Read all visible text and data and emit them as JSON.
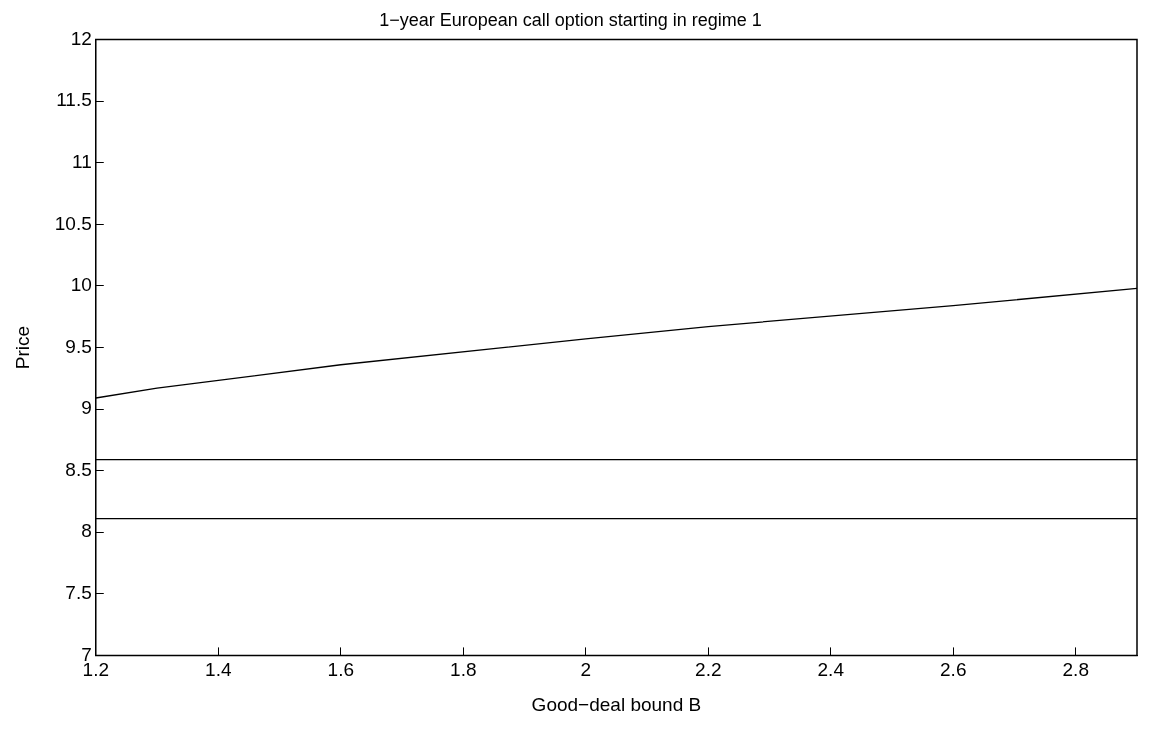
{
  "chart_data": {
    "type": "line",
    "title": "1−year European call option starting in regime 1",
    "xlabel": "Good−deal bound B",
    "ylabel": "Price",
    "series": [
      {
        "color": "#000000",
        "x": [
          1.2,
          1.3,
          1.6,
          2.0,
          2.2,
          2.6,
          2.9
        ],
        "values": [
          9.09,
          9.17,
          9.36,
          9.57,
          9.67,
          9.84,
          9.98
        ]
      },
      {
        "color": "#000000",
        "x": [
          1.2,
          2.9
        ],
        "values": [
          8.59,
          8.59
        ]
      },
      {
        "color": "#000000",
        "x": [
          1.2,
          2.9
        ],
        "values": [
          8.11,
          8.11
        ]
      }
    ],
    "xlim": [
      1.2,
      2.9
    ],
    "xticks": [
      1.2,
      1.4,
      1.6,
      1.8,
      2,
      2.2,
      2.4,
      2.6,
      2.8
    ],
    "ylim": [
      7,
      12
    ],
    "yticks": [
      7,
      7.5,
      8,
      8.5,
      9,
      9.5,
      10,
      10.5,
      11,
      11.5,
      12
    ],
    "grid": false,
    "legend": false,
    "marker": "none",
    "line_style": "solid"
  }
}
